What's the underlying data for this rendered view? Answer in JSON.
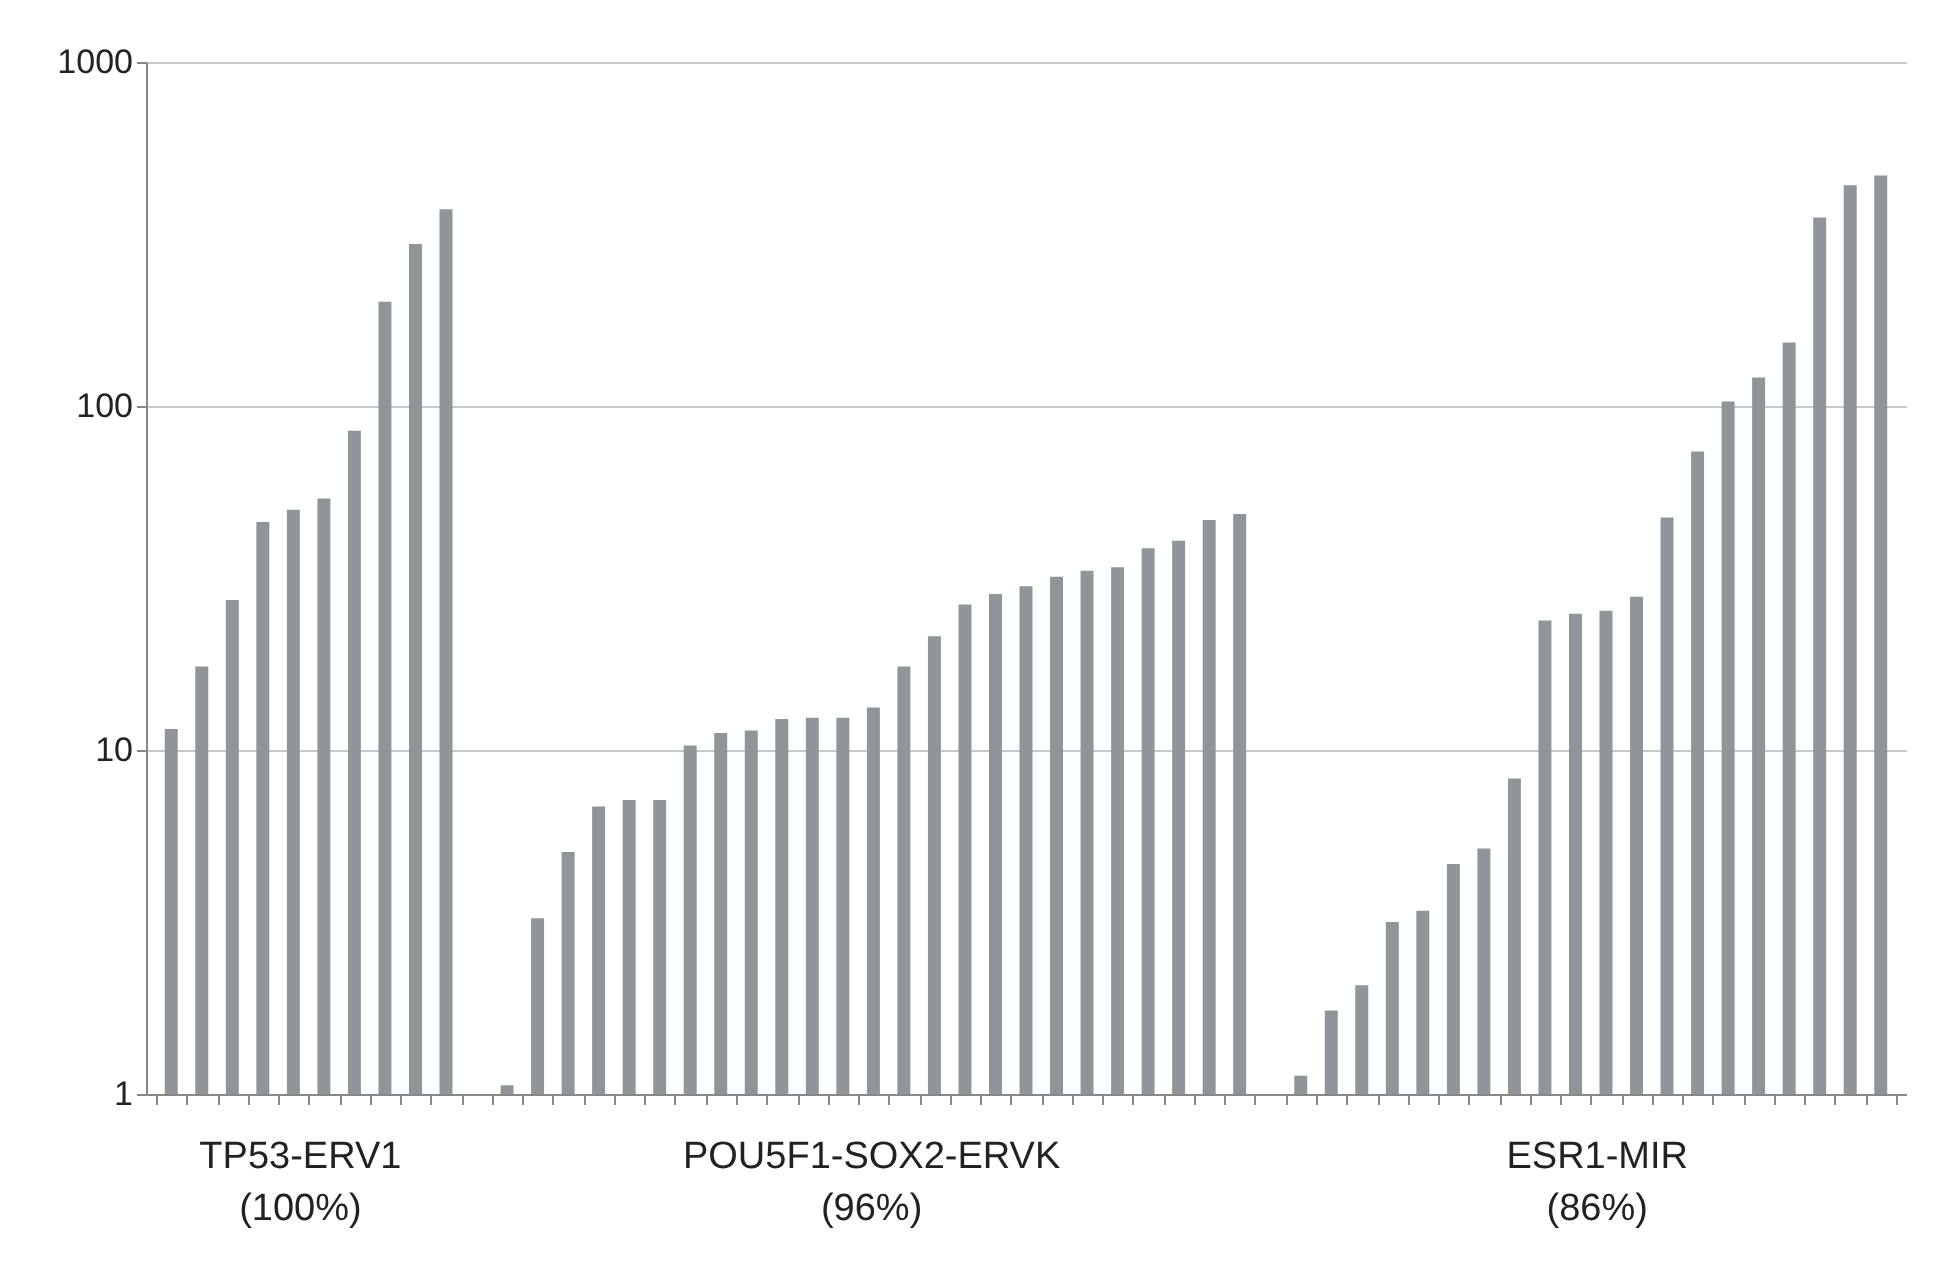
{
  "chart_data": {
    "type": "bar",
    "log": "y",
    "grid": "y",
    "tick_labels": "y",
    "categories": [
      null,
      null,
      null,
      null,
      null,
      null,
      null,
      null,
      null,
      null,
      null,
      null,
      null,
      null,
      null,
      null,
      null,
      null,
      null,
      null,
      null,
      null,
      null,
      null,
      null,
      null,
      null,
      null,
      null,
      null,
      null,
      null,
      null,
      null,
      null,
      null,
      null,
      null,
      null,
      null,
      null,
      null,
      null,
      null,
      null,
      null,
      null,
      null,
      null,
      null,
      null,
      null,
      null,
      null,
      null,
      null,
      null
    ],
    "values": [
      11.5,
      17.5,
      27.3,
      46,
      49.9,
      53.8,
      84.8,
      201,
      296,
      373,
      null,
      1.06,
      3.24,
      5.05,
      6.85,
      7.16,
      7.16,
      10.3,
      11.2,
      11.4,
      12.3,
      12.4,
      12.4,
      13.3,
      17.5,
      21.4,
      26.5,
      28.4,
      29.9,
      31.9,
      33.2,
      34,
      38.6,
      40.6,
      46.6,
      48.5,
      null,
      1.13,
      1.75,
      2.07,
      3.16,
      3.41,
      4.66,
      5.17,
      8.26,
      23.8,
      24.9,
      25.4,
      27.9,
      47.4,
      73.8,
      103,
      121,
      153,
      353,
      438,
      468
    ],
    "color": "#8f9599",
    "ylim": [
      1,
      1000
    ],
    "yticks": [
      1,
      10,
      100,
      {
        "value": 1000,
        "label": "1000"
      }
    ],
    "annotations": [
      "TP53-ERV1\n(100%)",
      "POU5F1-SOX2-ERVK\n(96%)",
      "ESR1-MIR\n(86%)"
    ]
  }
}
